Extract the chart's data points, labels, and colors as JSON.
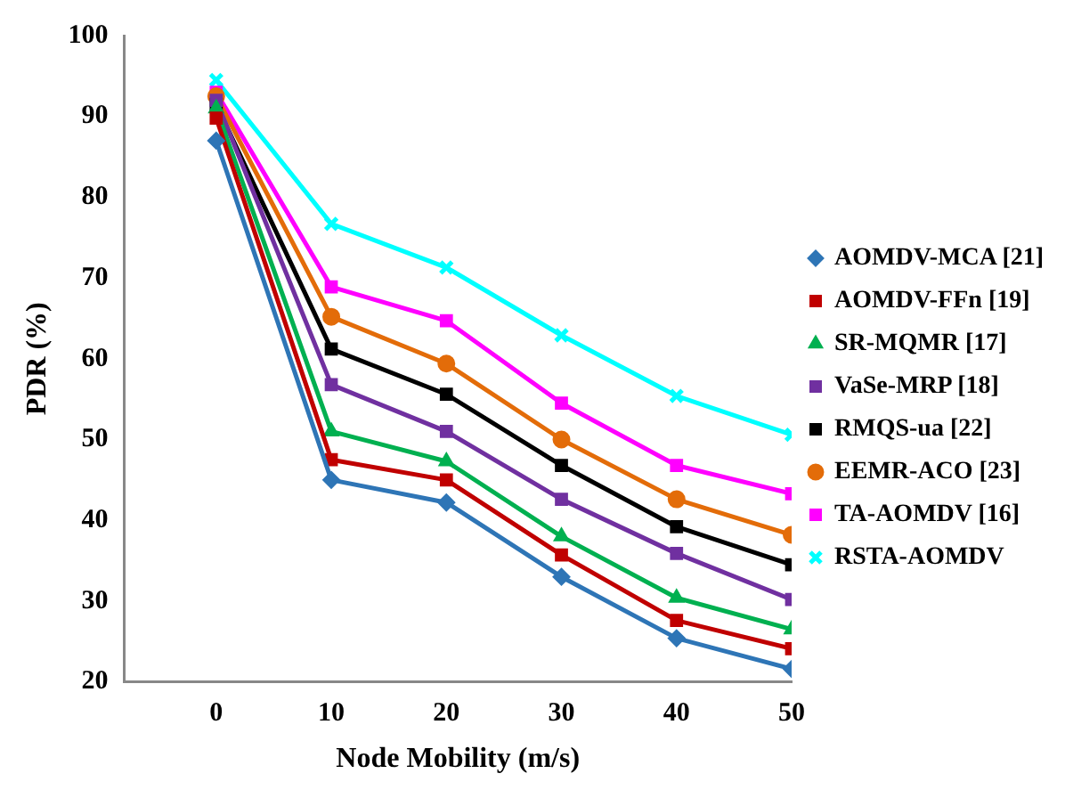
{
  "chart_data": {
    "type": "line",
    "xlabel": "Node Mobility (m/s)",
    "ylabel": "PDR (%)",
    "x": [
      0,
      10,
      20,
      30,
      40,
      50
    ],
    "xlim": [
      -8,
      50
    ],
    "xticks": [
      0,
      10,
      20,
      30,
      40,
      50
    ],
    "ylim": [
      20,
      100
    ],
    "yticks": [
      20,
      30,
      40,
      50,
      60,
      70,
      80,
      90,
      100
    ],
    "grid": false,
    "legend": "right",
    "series": [
      {
        "name": "AOMDV-MCA [21]",
        "color": "#2e75b6",
        "marker": "diamond",
        "values": [
          87,
          45,
          42.2,
          33,
          25.4,
          21.6
        ]
      },
      {
        "name": "AOMDV-FFn [19]",
        "color": "#c00000",
        "marker": "square",
        "values": [
          89.8,
          47.5,
          45,
          35.7,
          27.6,
          24.1
        ]
      },
      {
        "name": "SR-MQMR [17]",
        "color": "#00b050",
        "marker": "triangle",
        "values": [
          91,
          51,
          47.3,
          38,
          30.4,
          26.5
        ]
      },
      {
        "name": "VaSe-MRP [18]",
        "color": "#7030a0",
        "marker": "square",
        "values": [
          92,
          56.8,
          51,
          42.6,
          35.9,
          30.2
        ]
      },
      {
        "name": "RMQS-ua [22]",
        "color": "#000000",
        "marker": "square",
        "values": [
          91.5,
          61.2,
          55.6,
          46.8,
          39.2,
          34.5
        ]
      },
      {
        "name": "EEMR-ACO [23]",
        "color": "#e36c09",
        "marker": "circle",
        "values": [
          92.5,
          65.2,
          59.4,
          50,
          42.6,
          38.2
        ]
      },
      {
        "name": "TA-AOMDV [16]",
        "color": "#ff00ff",
        "marker": "square",
        "values": [
          93,
          68.9,
          64.7,
          54.5,
          46.8,
          43.3
        ]
      },
      {
        "name": "RSTA-AOMDV",
        "color": "#00ffff",
        "marker": "cross",
        "values": [
          94.5,
          76.7,
          71.3,
          62.9,
          55.4,
          50.6
        ]
      }
    ]
  }
}
